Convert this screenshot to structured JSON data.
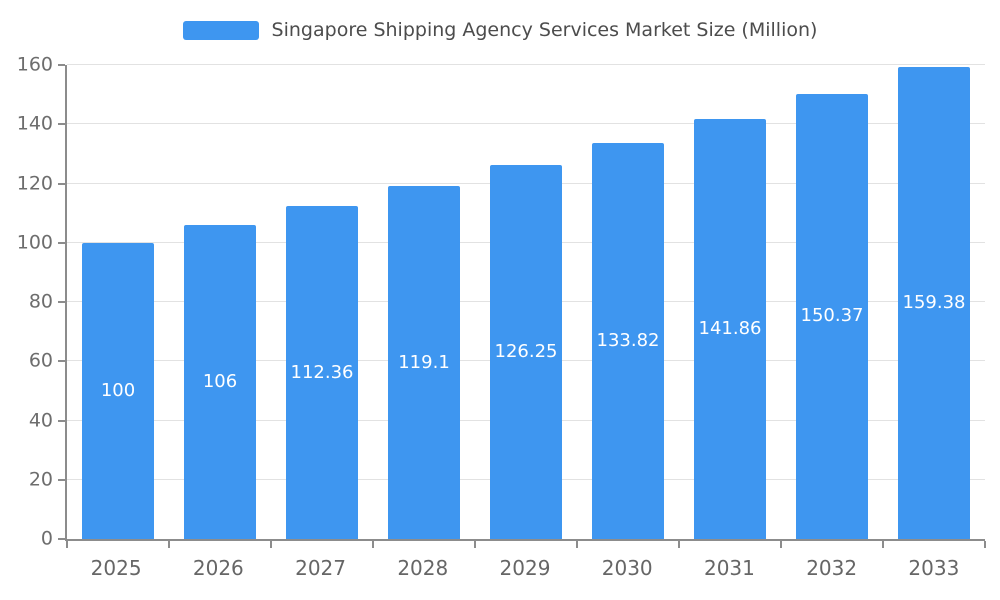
{
  "chart_data": {
    "type": "bar",
    "title": "Singapore Shipping Agency Services Market Size (Million)",
    "categories": [
      "2025",
      "2026",
      "2027",
      "2028",
      "2029",
      "2030",
      "2031",
      "2032",
      "2033"
    ],
    "values": [
      100,
      106,
      112.36,
      119.1,
      126.25,
      133.82,
      141.86,
      150.37,
      159.38
    ],
    "value_labels": [
      "100",
      "106",
      "112.36",
      "119.1",
      "126.25",
      "133.82",
      "141.86",
      "150.37",
      "159.38"
    ],
    "xlabel": "",
    "ylabel": "",
    "ylim": [
      0,
      160
    ],
    "yticks": [
      0,
      20,
      40,
      60,
      80,
      100,
      120,
      140,
      160
    ],
    "grid": true,
    "legend_position": "top-center",
    "bar_color": "#3e96f0",
    "bar_label_color": "#ffffff",
    "axis_color": "#8c8c8c",
    "grid_color": "#e2e2e2",
    "tick_label_color": "#6d6d6d",
    "title_color": "#4c4c4c"
  },
  "legend": {
    "label": "Singapore Shipping Agency Services Market Size (Million)"
  }
}
